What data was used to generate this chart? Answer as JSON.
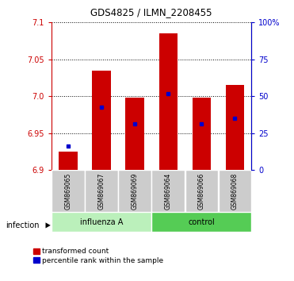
{
  "title": "GDS4825 / ILMN_2208455",
  "samples": [
    "GSM869065",
    "GSM869067",
    "GSM869069",
    "GSM869064",
    "GSM869066",
    "GSM869068"
  ],
  "groups": [
    "influenza A",
    "influenza A",
    "influenza A",
    "control",
    "control",
    "control"
  ],
  "bar_bottom": 6.9,
  "transformed_counts": [
    6.925,
    7.035,
    6.998,
    7.085,
    6.998,
    7.015
  ],
  "percentile_ranks": [
    6.932,
    6.985,
    6.963,
    7.003,
    6.963,
    6.97
  ],
  "ylim": [
    6.9,
    7.1
  ],
  "yticks_left": [
    6.9,
    6.95,
    7.0,
    7.05,
    7.1
  ],
  "yticks_right": [
    0,
    25,
    50,
    75,
    100
  ],
  "yticks_right_vals": [
    6.9,
    6.95,
    7.0,
    7.05,
    7.1
  ],
  "bar_color": "#cc0000",
  "percentile_color": "#0000cc",
  "bar_width": 0.55,
  "legend_red_label": "transformed count",
  "legend_blue_label": "percentile rank within the sample",
  "infection_label": "infection",
  "left_group": "influenza A",
  "right_group": "control",
  "influenza_color": "#bbf0bb",
  "control_color": "#55cc55",
  "sample_bg": "#cccccc",
  "plot_bg": "#ffffff"
}
